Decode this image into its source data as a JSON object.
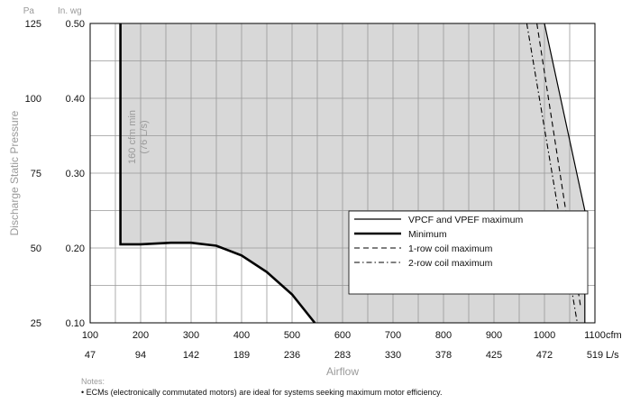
{
  "chart_data": {
    "type": "line",
    "xlabel": "Airflow",
    "ylabel": "Discharge Static Pressure",
    "x_unit": "cfm",
    "x2_unit": "L/s",
    "y_unit": "In. wg",
    "y2_unit": "Pa",
    "xlim": [
      100,
      1100
    ],
    "ylim": [
      0.1,
      0.5
    ],
    "x_ticks": [
      "100",
      "200",
      "300",
      "400",
      "500",
      "600",
      "700",
      "800",
      "900",
      "1000",
      "1100"
    ],
    "x2_ticks": [
      "47",
      "94",
      "142",
      "189",
      "236",
      "283",
      "330",
      "378",
      "425",
      "472",
      "519"
    ],
    "y_ticks": [
      "0.10",
      "0.20",
      "0.30",
      "0.40",
      "0.50"
    ],
    "y2_ticks": [
      "25",
      "50",
      "75",
      "100",
      "125"
    ],
    "region_annotation": [
      "160 cfm min",
      "(76 L/s)"
    ],
    "shaded_region": [
      [
        160,
        0.5
      ],
      [
        160,
        0.205
      ],
      [
        200,
        0.205
      ],
      [
        260,
        0.207
      ],
      [
        300,
        0.207
      ],
      [
        350,
        0.203
      ],
      [
        400,
        0.19
      ],
      [
        450,
        0.168
      ],
      [
        500,
        0.138
      ],
      [
        545,
        0.1
      ],
      [
        1080,
        0.1
      ],
      [
        1080,
        0.25
      ],
      [
        1000,
        0.5
      ]
    ],
    "series": [
      {
        "name": "VPCF and VPEF maximum",
        "style": "solid",
        "points": [
          [
            1000,
            0.5
          ],
          [
            1080,
            0.25
          ],
          [
            1080,
            0.1
          ]
        ]
      },
      {
        "name": "Minimum",
        "style": "thick",
        "points": [
          [
            160,
            0.5
          ],
          [
            160,
            0.205
          ],
          [
            200,
            0.205
          ],
          [
            260,
            0.207
          ],
          [
            300,
            0.207
          ],
          [
            350,
            0.203
          ],
          [
            400,
            0.19
          ],
          [
            450,
            0.168
          ],
          [
            500,
            0.138
          ],
          [
            545,
            0.1
          ]
        ]
      },
      {
        "name": "1-row coil maximum",
        "style": "dashed",
        "points": [
          [
            985,
            0.5
          ],
          [
            1072,
            0.12
          ]
        ]
      },
      {
        "name": "2-row coil maximum",
        "style": "dashdot",
        "points": [
          [
            965,
            0.5
          ],
          [
            1065,
            0.1
          ]
        ]
      }
    ],
    "grid": true,
    "legend_position": "lower-right"
  },
  "notes_title": "Notes:",
  "notes": [
    "• ECMs (electronically commutated motors) are ideal for systems seeking maximum motor efficiency."
  ]
}
